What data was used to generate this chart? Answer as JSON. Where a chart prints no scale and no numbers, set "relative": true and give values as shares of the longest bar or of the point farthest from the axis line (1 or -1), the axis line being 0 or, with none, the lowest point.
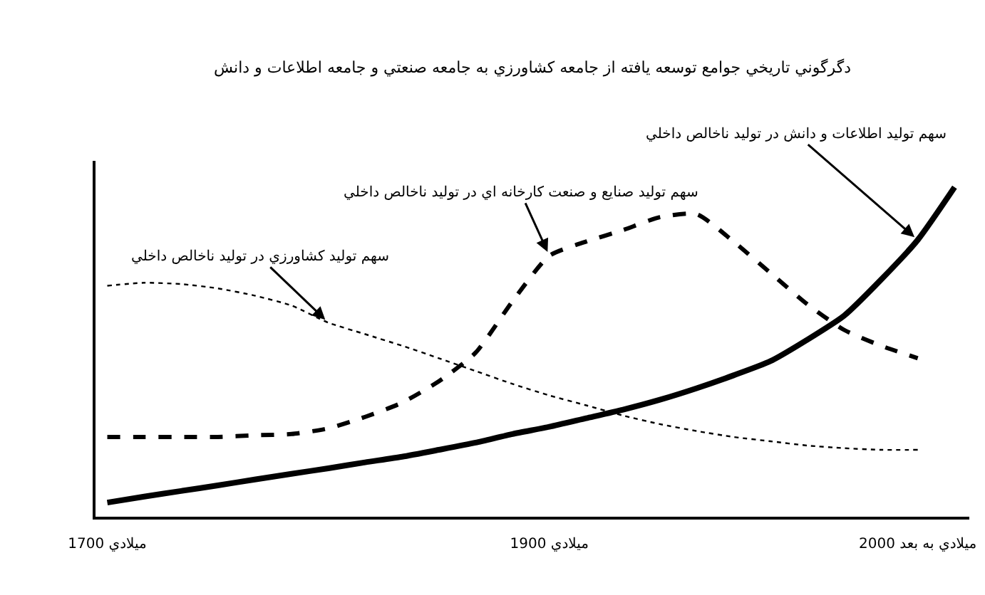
{
  "chart_data": {
    "type": "line",
    "title": "دگرگوني تاريخي جوامع توسعه يافته از جامعه كشاورزي به جامعه صنعتي و جامعه اطلاعات و دانش",
    "relative": true,
    "legend": false,
    "marker": "none",
    "categories": [
      "1700 ميلادي",
      null,
      null,
      null,
      null,
      null,
      null,
      null,
      null,
      null,
      null,
      null,
      "1900 ميلادي",
      null,
      null,
      null,
      null,
      null,
      null,
      null,
      null,
      null,
      "2000 ميلادي به بعد",
      null
    ],
    "series": [
      {
        "name": "سهم توليد كشاورزي در توليد ناخالص داخلي",
        "color": "#000000",
        "line_style": "dotted",
        "values": [
          0.701,
          0.71,
          0.706,
          0.693,
          0.671,
          0.641,
          0.589,
          0.554,
          0.519,
          0.481,
          0.442,
          0.403,
          0.368,
          0.338,
          0.307,
          0.281,
          0.26,
          0.242,
          0.229,
          0.216,
          0.208,
          0.203,
          0.203,
          null
        ]
      },
      {
        "name": "سهم توليد صنايع و صنعت كارخانه اي در توليد ناخالص داخلي",
        "color": "#000000",
        "line_style": "dashed",
        "values": [
          0.242,
          0.242,
          0.242,
          0.242,
          0.247,
          0.251,
          0.268,
          0.303,
          0.346,
          0.411,
          0.498,
          0.654,
          0.792,
          0.835,
          0.87,
          0.909,
          0.918,
          0.835,
          0.74,
          0.645,
          0.567,
          0.519,
          0.481,
          null
        ]
      },
      {
        "name": "سهم توليد اطلاعات و دانش در توليد ناخالص داخلي",
        "color": "#000000",
        "line_style": "solid",
        "values": [
          0.043,
          0.061,
          0.078,
          0.095,
          0.113,
          0.13,
          0.147,
          0.165,
          0.182,
          0.203,
          0.225,
          0.251,
          0.273,
          0.299,
          0.325,
          0.355,
          0.39,
          0.429,
          0.472,
          0.537,
          0.61,
          0.719,
          0.84,
          1.0
        ]
      }
    ]
  }
}
